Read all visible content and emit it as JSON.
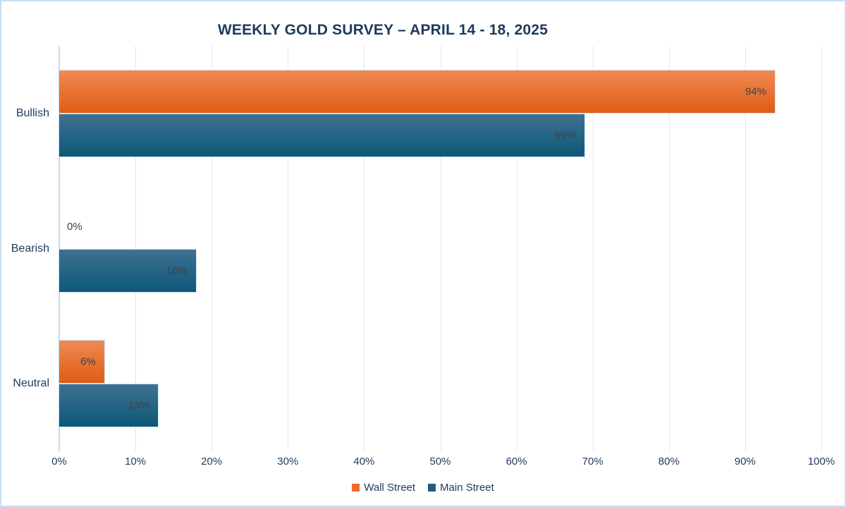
{
  "title": "WEEKLY GOLD SURVEY – APRIL 14 - 18, 2025",
  "colors": {
    "title_text": "#1d3a5c",
    "axis_text": "#1d3a5c",
    "value_label_text": "#3a4148",
    "gridline": "#dbe9f7",
    "axis_line": "#c3d9ee",
    "page_border": "#c9def2",
    "bar_border": "#cfe2f3",
    "wall_street_gradient_top": "#f08a54",
    "wall_street_gradient_bottom": "#e05c12",
    "wall_street_legend": "#ec6c2b",
    "main_street_gradient_top": "#3e7191",
    "main_street_gradient_bottom": "#0d5878",
    "main_street_legend": "#1e5d7e"
  },
  "chart_data": {
    "type": "bar",
    "orientation": "horizontal",
    "title": "WEEKLY GOLD SURVEY – APRIL 14 - 18, 2025",
    "categories": [
      "Bullish",
      "Bearish",
      "Neutral"
    ],
    "series": [
      {
        "name": "Wall Street",
        "values": [
          94,
          0,
          6
        ]
      },
      {
        "name": "Main Street",
        "values": [
          69,
          18,
          13
        ]
      }
    ],
    "value_suffix": "%",
    "data_labels": "inside-end",
    "xlim": [
      0,
      100
    ],
    "x_ticks": [
      0,
      10,
      20,
      30,
      40,
      50,
      60,
      70,
      80,
      90,
      100
    ],
    "x_tick_labels": [
      "0%",
      "10%",
      "20%",
      "30%",
      "40%",
      "50%",
      "60%",
      "70%",
      "80%",
      "90%",
      "100%"
    ],
    "grid": "vertical",
    "legend_position": "bottom"
  },
  "legend": {
    "items": [
      {
        "label": "Wall Street"
      },
      {
        "label": "Main Street"
      }
    ]
  }
}
